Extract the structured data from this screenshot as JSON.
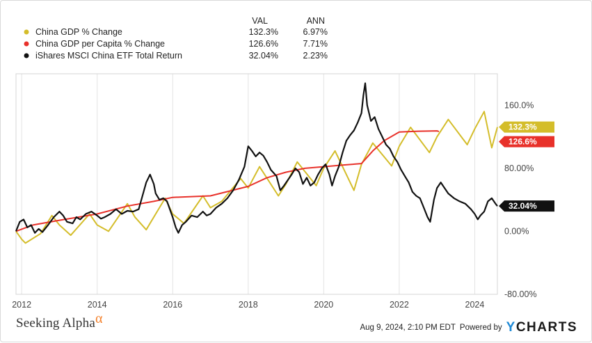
{
  "legend": {
    "col_val": "VAL",
    "col_ann": "ANN",
    "items": [
      {
        "name": "China GDP % Change",
        "val": "132.3%",
        "ann": "6.97%",
        "color": "#d4bd2a"
      },
      {
        "name": "China GDP per Capita % Change",
        "val": "126.6%",
        "ann": "7.71%",
        "color": "#e8312a"
      },
      {
        "name": "iShares MSCI China ETF Total Return",
        "val": "32.04%",
        "ann": "2.23%",
        "color": "#111111"
      }
    ]
  },
  "tags": [
    {
      "text": "132.3%",
      "color": "#d4bd2a",
      "value": 132.3
    },
    {
      "text": "126.6%",
      "color": "#e8312a",
      "value": 126.6
    },
    {
      "text": "32.04%",
      "color": "#111111",
      "value": 32.04
    }
  ],
  "watermark": {
    "text": "Seeking Alpha",
    "symbol": "α"
  },
  "footer": {
    "timestamp": "Aug 9, 2024, 2:10 PM EDT",
    "powered_by": "Powered by",
    "brand_y": "Y",
    "brand_rest": "CHARTS"
  },
  "chart_data": {
    "type": "line",
    "xlim": [
      2011.85,
      2024.6
    ],
    "ylim": [
      -80,
      200
    ],
    "x_ticks": [
      2012,
      2014,
      2016,
      2018,
      2020,
      2022,
      2024
    ],
    "y_ticks": [
      {
        "value": 160,
        "label": "160.0%"
      },
      {
        "value": 80,
        "label": "80.00%"
      },
      {
        "value": 0,
        "label": "0.00%"
      },
      {
        "value": -80,
        "label": "-80.00%"
      }
    ],
    "grid": "vertical",
    "legend_position": "top-left",
    "series": [
      {
        "name": "China GDP % Change",
        "color": "#d4bd2a",
        "points": [
          [
            2011.85,
            0
          ],
          [
            2012.0,
            -10
          ],
          [
            2012.1,
            -15
          ],
          [
            2012.5,
            -3
          ],
          [
            2012.8,
            20
          ],
          [
            2013.0,
            8
          ],
          [
            2013.3,
            -5
          ],
          [
            2013.8,
            22
          ],
          [
            2014.0,
            8
          ],
          [
            2014.3,
            0
          ],
          [
            2014.8,
            35
          ],
          [
            2015.0,
            18
          ],
          [
            2015.3,
            2
          ],
          [
            2015.8,
            42
          ],
          [
            2016.0,
            22
          ],
          [
            2016.3,
            10
          ],
          [
            2016.8,
            45
          ],
          [
            2017.0,
            30
          ],
          [
            2017.3,
            38
          ],
          [
            2017.8,
            67
          ],
          [
            2018.0,
            55
          ],
          [
            2018.3,
            82
          ],
          [
            2018.8,
            45
          ],
          [
            2019.0,
            60
          ],
          [
            2019.3,
            88
          ],
          [
            2019.8,
            58
          ],
          [
            2020.0,
            80
          ],
          [
            2020.3,
            102
          ],
          [
            2020.8,
            52
          ],
          [
            2021.0,
            85
          ],
          [
            2021.3,
            112
          ],
          [
            2021.8,
            83
          ],
          [
            2022.0,
            108
          ],
          [
            2022.3,
            132
          ],
          [
            2022.8,
            100
          ],
          [
            2023.0,
            120
          ],
          [
            2023.3,
            142
          ],
          [
            2023.8,
            110
          ],
          [
            2024.0,
            130
          ],
          [
            2024.25,
            152
          ],
          [
            2024.45,
            106
          ],
          [
            2024.6,
            132.3
          ]
        ]
      },
      {
        "name": "China GDP per Capita % Change",
        "color": "#e8312a",
        "points": [
          [
            2011.85,
            0
          ],
          [
            2012.3,
            8
          ],
          [
            2013.0,
            14
          ],
          [
            2014.0,
            22
          ],
          [
            2014.8,
            32
          ],
          [
            2015.5,
            38
          ],
          [
            2016.0,
            43
          ],
          [
            2017.0,
            45
          ],
          [
            2018.0,
            57
          ],
          [
            2018.5,
            68
          ],
          [
            2019.0,
            75
          ],
          [
            2019.5,
            80
          ],
          [
            2020.0,
            82
          ],
          [
            2020.5,
            84
          ],
          [
            2021.0,
            86
          ],
          [
            2021.3,
            102
          ],
          [
            2021.6,
            115
          ],
          [
            2022.0,
            126
          ],
          [
            2022.5,
            127
          ],
          [
            2023.0,
            127.5
          ],
          [
            2023.05,
            126.6
          ]
        ]
      },
      {
        "name": "iShares MSCI China ETF Total Return",
        "color": "#111111",
        "points": [
          [
            2011.85,
            0
          ],
          [
            2011.95,
            12
          ],
          [
            2012.05,
            15
          ],
          [
            2012.15,
            5
          ],
          [
            2012.25,
            8
          ],
          [
            2012.35,
            -2
          ],
          [
            2012.45,
            3
          ],
          [
            2012.55,
            -1
          ],
          [
            2012.7,
            8
          ],
          [
            2012.85,
            18
          ],
          [
            2013.0,
            25
          ],
          [
            2013.1,
            20
          ],
          [
            2013.2,
            12
          ],
          [
            2013.35,
            10
          ],
          [
            2013.45,
            18
          ],
          [
            2013.55,
            15
          ],
          [
            2013.7,
            22
          ],
          [
            2013.85,
            25
          ],
          [
            2014.0,
            20
          ],
          [
            2014.1,
            16
          ],
          [
            2014.2,
            18
          ],
          [
            2014.35,
            22
          ],
          [
            2014.5,
            28
          ],
          [
            2014.65,
            22
          ],
          [
            2014.8,
            26
          ],
          [
            2014.95,
            25
          ],
          [
            2015.1,
            28
          ],
          [
            2015.2,
            45
          ],
          [
            2015.3,
            62
          ],
          [
            2015.4,
            72
          ],
          [
            2015.5,
            60
          ],
          [
            2015.55,
            48
          ],
          [
            2015.65,
            40
          ],
          [
            2015.75,
            42
          ],
          [
            2015.85,
            38
          ],
          [
            2016.0,
            18
          ],
          [
            2016.08,
            5
          ],
          [
            2016.15,
            -2
          ],
          [
            2016.25,
            8
          ],
          [
            2016.35,
            12
          ],
          [
            2016.5,
            20
          ],
          [
            2016.65,
            18
          ],
          [
            2016.8,
            25
          ],
          [
            2016.9,
            20
          ],
          [
            2017.0,
            22
          ],
          [
            2017.15,
            30
          ],
          [
            2017.3,
            35
          ],
          [
            2017.45,
            42
          ],
          [
            2017.6,
            52
          ],
          [
            2017.75,
            65
          ],
          [
            2017.9,
            82
          ],
          [
            2018.0,
            108
          ],
          [
            2018.1,
            102
          ],
          [
            2018.2,
            95
          ],
          [
            2018.3,
            100
          ],
          [
            2018.4,
            96
          ],
          [
            2018.5,
            88
          ],
          [
            2018.6,
            78
          ],
          [
            2018.75,
            70
          ],
          [
            2018.85,
            52
          ],
          [
            2018.95,
            58
          ],
          [
            2019.05,
            65
          ],
          [
            2019.15,
            72
          ],
          [
            2019.25,
            80
          ],
          [
            2019.35,
            75
          ],
          [
            2019.45,
            60
          ],
          [
            2019.55,
            68
          ],
          [
            2019.65,
            58
          ],
          [
            2019.75,
            62
          ],
          [
            2019.85,
            72
          ],
          [
            2019.95,
            80
          ],
          [
            2020.05,
            85
          ],
          [
            2020.15,
            72
          ],
          [
            2020.22,
            58
          ],
          [
            2020.3,
            70
          ],
          [
            2020.4,
            82
          ],
          [
            2020.5,
            100
          ],
          [
            2020.6,
            115
          ],
          [
            2020.7,
            122
          ],
          [
            2020.8,
            128
          ],
          [
            2020.9,
            138
          ],
          [
            2021.0,
            150
          ],
          [
            2021.05,
            172
          ],
          [
            2021.1,
            188
          ],
          [
            2021.15,
            160
          ],
          [
            2021.25,
            140
          ],
          [
            2021.35,
            145
          ],
          [
            2021.45,
            130
          ],
          [
            2021.55,
            120
          ],
          [
            2021.65,
            110
          ],
          [
            2021.75,
            105
          ],
          [
            2021.85,
            95
          ],
          [
            2021.95,
            88
          ],
          [
            2022.05,
            78
          ],
          [
            2022.15,
            70
          ],
          [
            2022.25,
            62
          ],
          [
            2022.35,
            50
          ],
          [
            2022.45,
            45
          ],
          [
            2022.55,
            42
          ],
          [
            2022.65,
            30
          ],
          [
            2022.75,
            18
          ],
          [
            2022.82,
            12
          ],
          [
            2022.92,
            40
          ],
          [
            2023.0,
            55
          ],
          [
            2023.1,
            62
          ],
          [
            2023.2,
            55
          ],
          [
            2023.3,
            48
          ],
          [
            2023.45,
            42
          ],
          [
            2023.6,
            38
          ],
          [
            2023.75,
            35
          ],
          [
            2023.9,
            28
          ],
          [
            2024.0,
            22
          ],
          [
            2024.08,
            15
          ],
          [
            2024.15,
            20
          ],
          [
            2024.25,
            25
          ],
          [
            2024.35,
            38
          ],
          [
            2024.45,
            42
          ],
          [
            2024.55,
            35
          ],
          [
            2024.6,
            32.04
          ]
        ]
      }
    ]
  }
}
